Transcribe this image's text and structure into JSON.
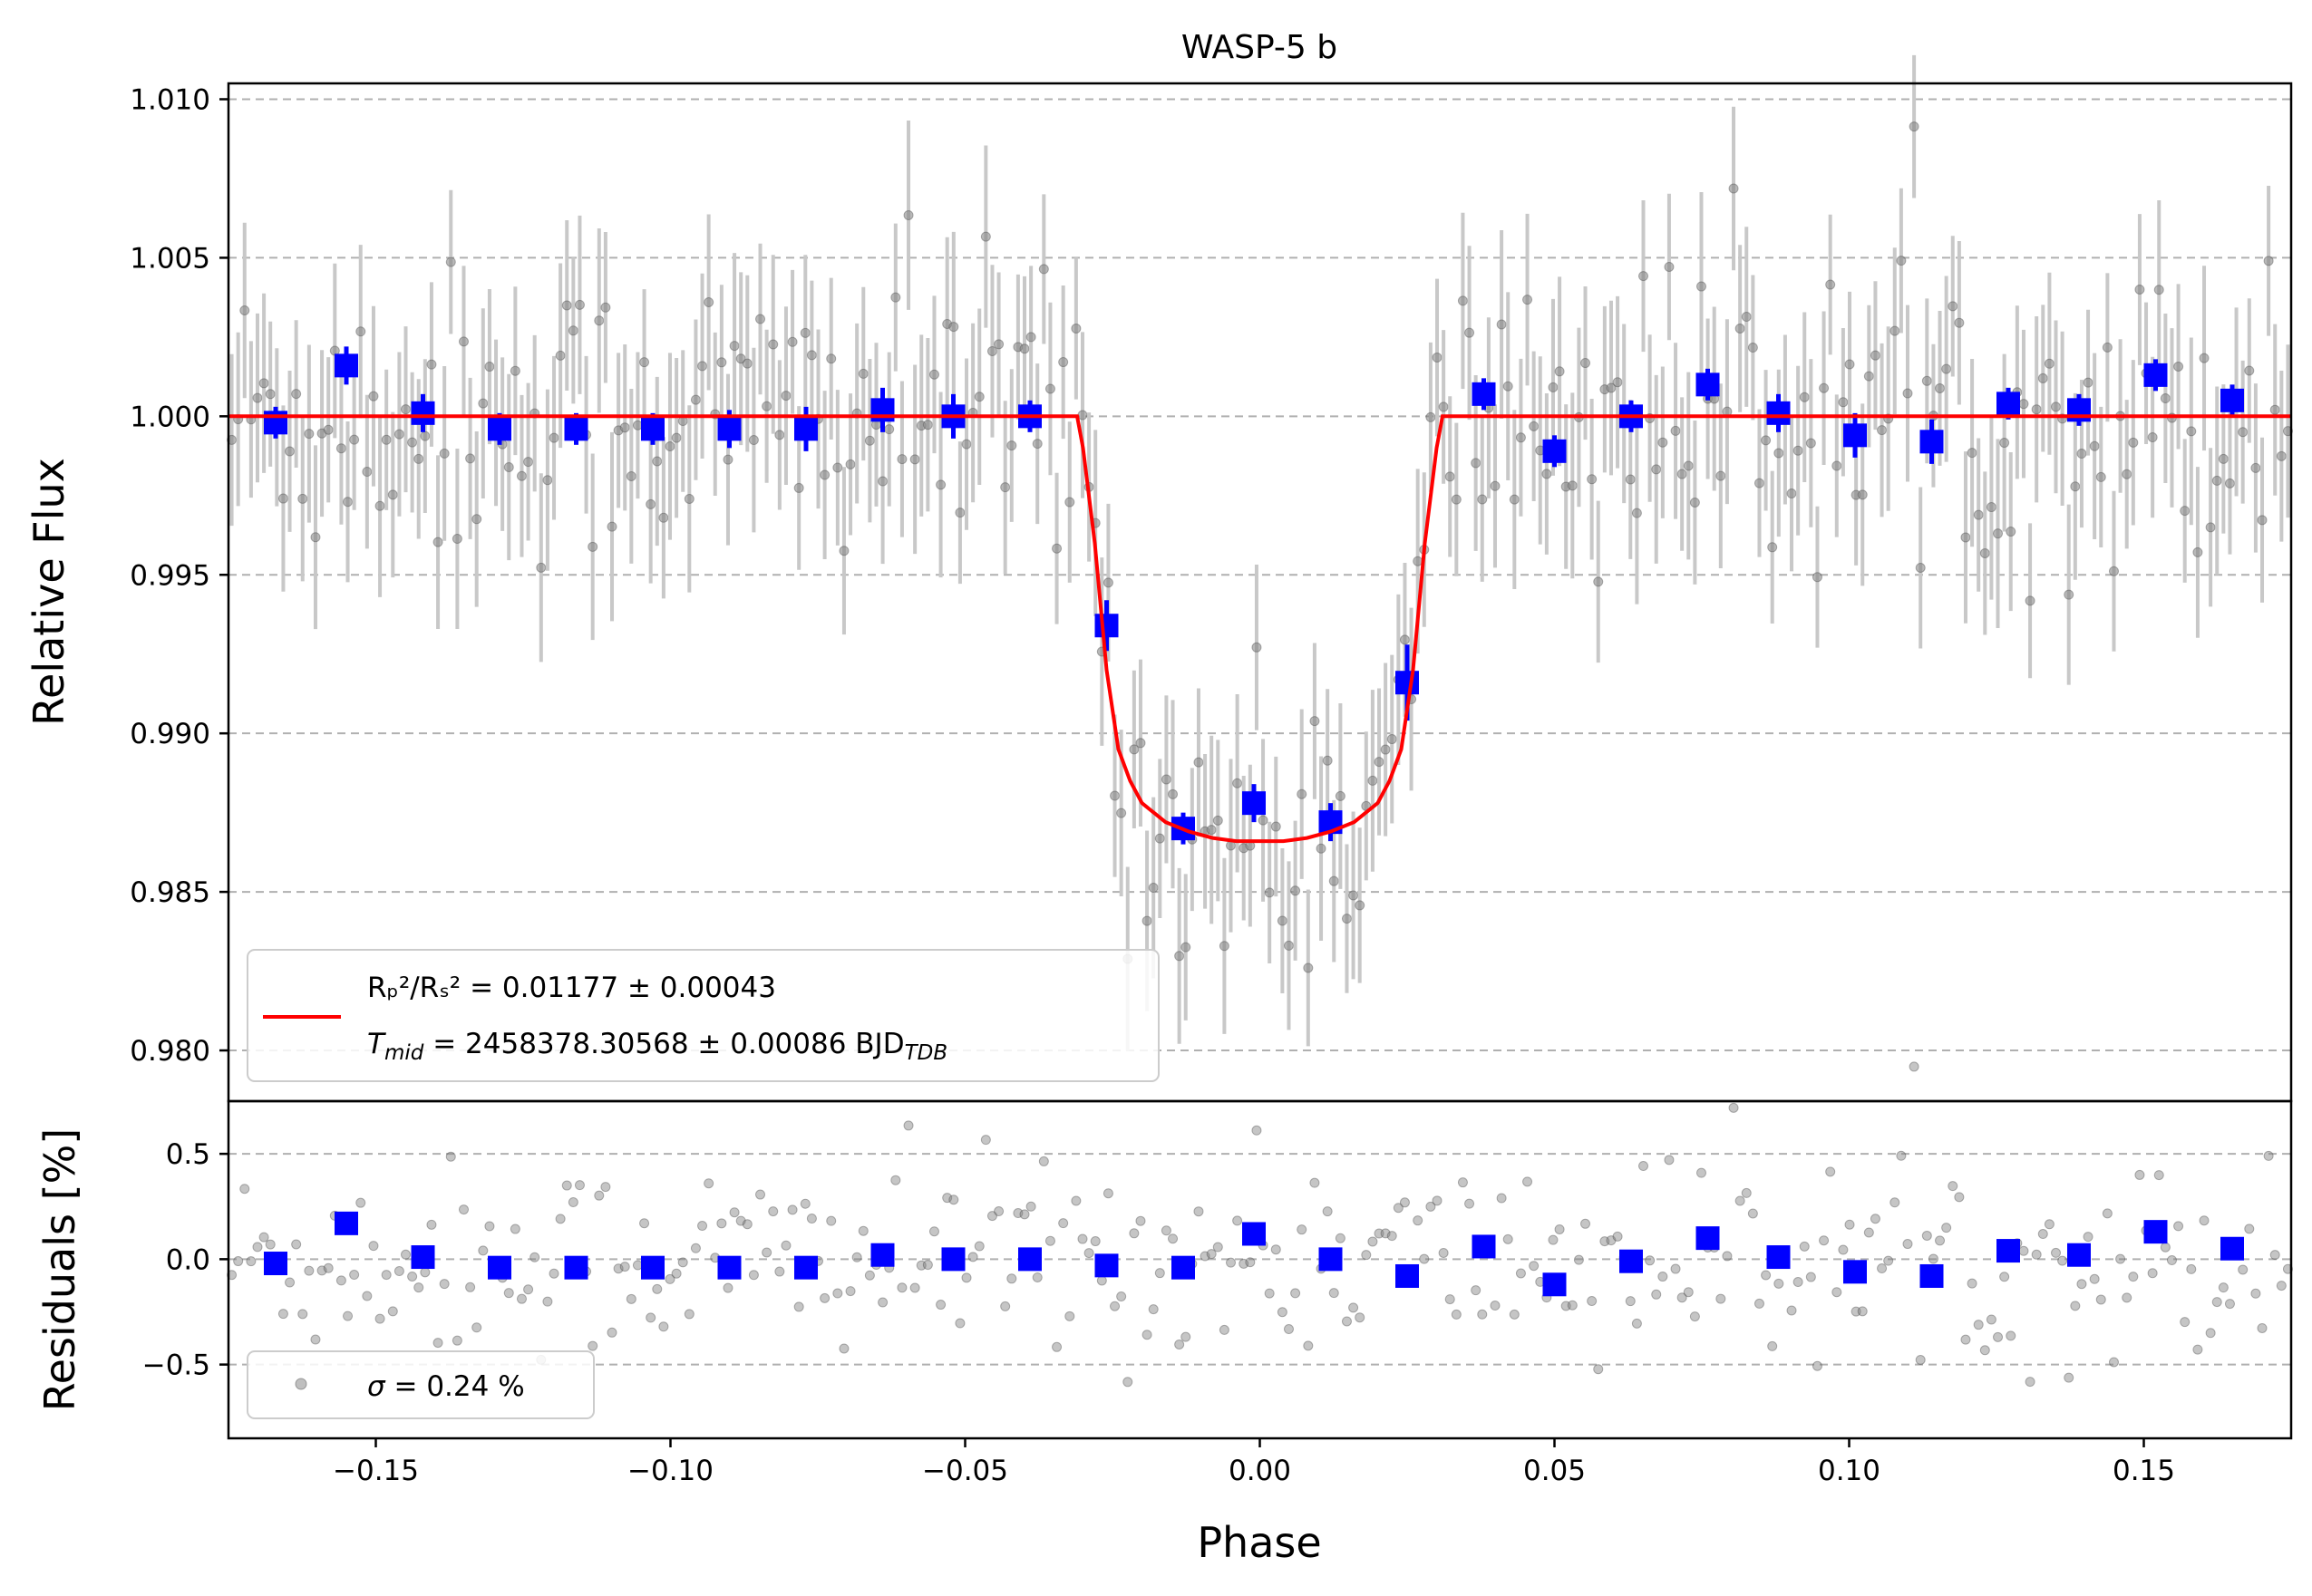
{
  "chart_data": {
    "type": "scatter",
    "title": "WASP-5 b",
    "xlabel": "Phase",
    "xlim": [
      -0.175,
      0.175
    ],
    "xticks": [
      {
        "value": -0.15,
        "label": "−0.15"
      },
      {
        "value": -0.1,
        "label": "−0.10"
      },
      {
        "value": -0.05,
        "label": "−0.05"
      },
      {
        "value": 0.0,
        "label": "0.00"
      },
      {
        "value": 0.05,
        "label": "0.05"
      },
      {
        "value": 0.1,
        "label": "0.10"
      },
      {
        "value": 0.15,
        "label": "0.15"
      }
    ],
    "top_panel": {
      "ylabel": "Relative Flux",
      "ylim": [
        0.9784,
        1.0105
      ],
      "yticks": [
        {
          "value": 1.01,
          "label": "1.010"
        },
        {
          "value": 1.005,
          "label": "1.005"
        },
        {
          "value": 1.0,
          "label": "1.000"
        },
        {
          "value": 0.995,
          "label": "0.995"
        },
        {
          "value": 0.99,
          "label": "0.990"
        },
        {
          "value": 0.985,
          "label": "0.985"
        },
        {
          "value": 0.98,
          "label": "0.980"
        }
      ],
      "grid": "horizontal dashed",
      "binned_flux": {
        "name": "binned data",
        "color": "#0000ff",
        "x": [
          -0.167,
          -0.155,
          -0.142,
          -0.129,
          -0.116,
          -0.103,
          -0.09,
          -0.077,
          -0.064,
          -0.052,
          -0.039,
          -0.026,
          -0.013,
          -0.001,
          0.012,
          0.025,
          0.038,
          0.05,
          0.063,
          0.076,
          0.088,
          0.101,
          0.114,
          0.127,
          0.139,
          0.152,
          0.165
        ],
        "y": [
          0.9998,
          1.0016,
          1.0001,
          0.9996,
          0.9996,
          0.9996,
          0.9996,
          0.9996,
          1.0002,
          1.0,
          1.0,
          0.9934,
          0.987,
          0.9878,
          0.9872,
          0.9916,
          1.0007,
          0.9989,
          1.0,
          1.001,
          1.0001,
          0.9994,
          0.9992,
          1.0004,
          1.0002,
          1.0013,
          1.0005
        ],
        "yerr": [
          0.0005,
          0.0006,
          0.0006,
          0.0005,
          0.0005,
          0.0005,
          0.0006,
          0.0007,
          0.0007,
          0.0007,
          0.0005,
          0.0008,
          0.0005,
          0.0006,
          0.0006,
          0.0012,
          0.0005,
          0.0005,
          0.0005,
          0.0005,
          0.0006,
          0.0007,
          0.0007,
          0.0005,
          0.0005,
          0.0005,
          0.0005
        ]
      },
      "model": {
        "name": "transit model",
        "color": "#ff0000",
        "x": [
          -0.175,
          -0.031,
          -0.03,
          -0.028,
          -0.026,
          -0.024,
          -0.022,
          -0.02,
          -0.016,
          -0.012,
          -0.008,
          -0.004,
          0.0,
          0.004,
          0.008,
          0.012,
          0.016,
          0.02,
          0.022,
          0.024,
          0.026,
          0.028,
          0.03,
          0.031,
          0.175
        ],
        "y": [
          1.0,
          1.0,
          0.999,
          0.996,
          0.992,
          0.9895,
          0.9885,
          0.9878,
          0.9872,
          0.9869,
          0.9867,
          0.9866,
          0.9866,
          0.9866,
          0.9867,
          0.9869,
          0.9872,
          0.9878,
          0.9885,
          0.9895,
          0.992,
          0.996,
          0.999,
          1.0,
          1.0
        ]
      },
      "legend": {
        "placement": "lower-left",
        "line1": "Rₚ²/Rₛ² = 0.01177 ± 0.00043",
        "line2_main": "T",
        "line2_sub": "mid",
        "line2_value": " = 2458378.30568 ± 0.00086 BJD",
        "line2_sub2": "TDB"
      }
    },
    "bottom_panel": {
      "ylabel": "Residuals [%]",
      "ylim": [
        -0.85,
        0.75
      ],
      "yticks": [
        {
          "value": 0.5,
          "label": "0.5"
        },
        {
          "value": 0.0,
          "label": "0.0"
        },
        {
          "value": -0.5,
          "label": "−0.5"
        }
      ],
      "grid": "horizontal dashed",
      "binned_residuals": {
        "name": "binned residuals",
        "color": "#0000ff",
        "x": [
          -0.167,
          -0.155,
          -0.142,
          -0.129,
          -0.116,
          -0.103,
          -0.09,
          -0.077,
          -0.064,
          -0.052,
          -0.039,
          -0.026,
          -0.013,
          -0.001,
          0.012,
          0.025,
          0.038,
          0.05,
          0.063,
          0.076,
          0.088,
          0.101,
          0.114,
          0.127,
          0.139,
          0.152,
          0.165
        ],
        "y": [
          -0.02,
          0.17,
          0.01,
          -0.04,
          -0.04,
          -0.04,
          -0.04,
          -0.04,
          0.02,
          0.0,
          0.0,
          -0.03,
          -0.04,
          0.12,
          0.0,
          -0.08,
          0.06,
          -0.12,
          -0.01,
          0.1,
          0.01,
          -0.06,
          -0.08,
          0.04,
          0.02,
          0.13,
          0.05
        ]
      },
      "unbinned_points": "gray translucent scatter, ~320 points, scatter std 0.24 %",
      "legend": {
        "placement": "lower-left",
        "text_sym": "σ",
        "text": " = 0.24 %"
      }
    }
  },
  "colors": {
    "binned": "#0000ff",
    "model": "#ff0000",
    "raw": "#7f7f7f",
    "errorbar": "#c8c8c8"
  }
}
